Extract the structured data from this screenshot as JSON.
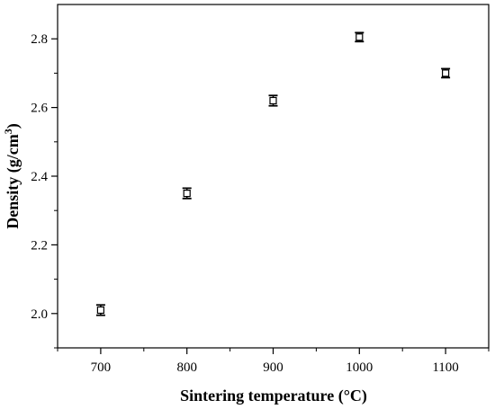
{
  "chart_data": {
    "type": "scatter",
    "xlabel": "Sintering temperature (°C)",
    "ylabel": {
      "main": "Density (g/cm",
      "sup": "3",
      "close": ")"
    },
    "xlim": [
      650,
      1150
    ],
    "ylim": [
      1.9,
      2.9
    ],
    "x_ticks": [
      700,
      800,
      900,
      1000,
      1100
    ],
    "x_tick_labels": [
      "700",
      "800",
      "900",
      "1000",
      "1100"
    ],
    "y_ticks": [
      2.0,
      2.2,
      2.4,
      2.6,
      2.8
    ],
    "y_tick_labels": [
      "2.0",
      "2.2",
      "2.4",
      "2.6",
      "2.8"
    ],
    "grid": false,
    "marker": "open-square",
    "points": [
      {
        "x": 700,
        "y": 2.01,
        "err": 0.015
      },
      {
        "x": 800,
        "y": 2.35,
        "err": 0.015
      },
      {
        "x": 900,
        "y": 2.62,
        "err": 0.015
      },
      {
        "x": 1000,
        "y": 2.805,
        "err": 0.013
      },
      {
        "x": 1100,
        "y": 2.7,
        "err": 0.013
      }
    ]
  }
}
